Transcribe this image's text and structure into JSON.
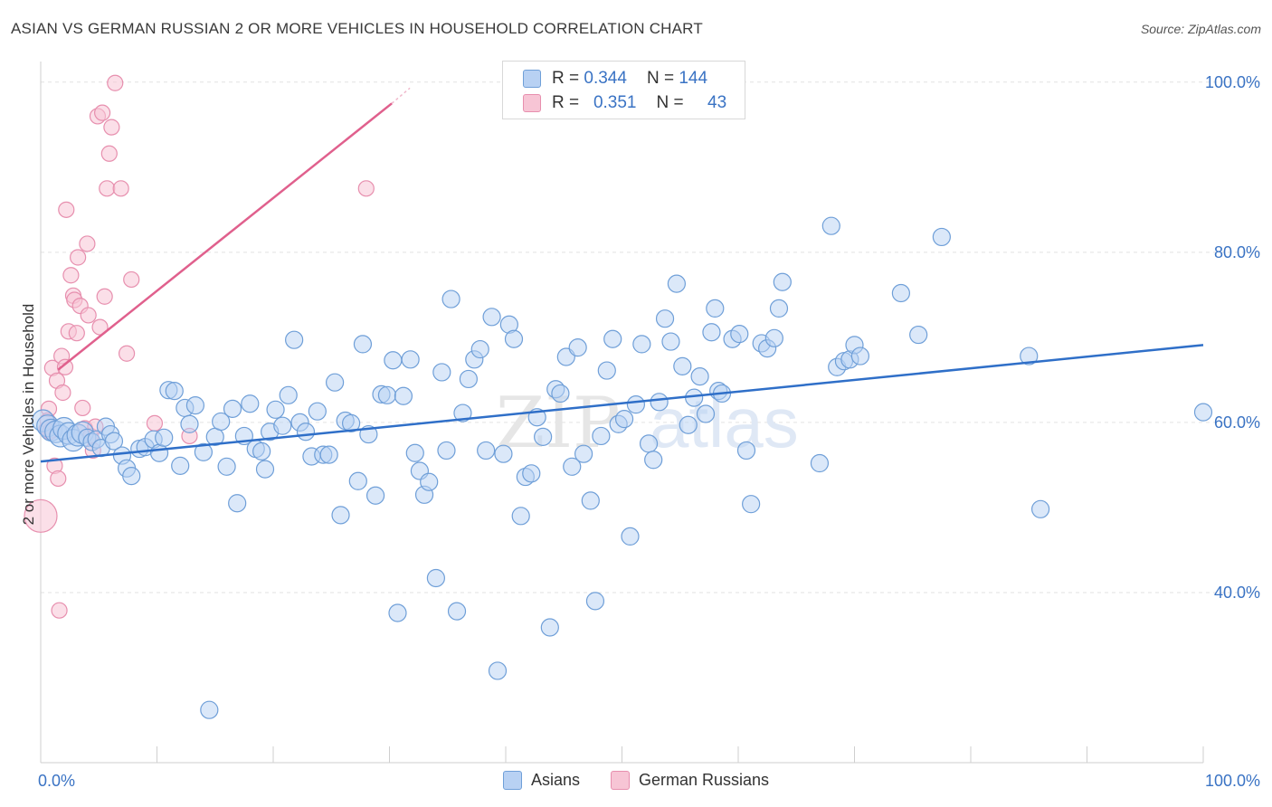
{
  "header": {
    "title": "ASIAN VS GERMAN RUSSIAN 2 OR MORE VEHICLES IN HOUSEHOLD CORRELATION CHART",
    "source": "Source: ZipAtlas.com"
  },
  "watermark": {
    "part1": "ZIP",
    "part2": "atlas"
  },
  "legend": {
    "rows": [
      {
        "r_label": "R =",
        "r_value": "0.344",
        "n_label": "N =",
        "n_value": "144"
      },
      {
        "r_label": "R =",
        "r_value": "0.351",
        "n_label": "N =",
        "n_value": "43"
      }
    ]
  },
  "colors": {
    "asian_fill": "#b8d1f3",
    "asian_stroke": "#6f9fd8",
    "asian_line": "#2f6fc8",
    "german_fill": "#f7c5d5",
    "german_stroke": "#e78fae",
    "german_line": "#e0608d",
    "axis_label": "#3a73c4",
    "grid": "#e2e2e2"
  },
  "chart_data": {
    "type": "scatter",
    "xlabel": "",
    "ylabel": "2 or more Vehicles in Household",
    "xlim": [
      0,
      100
    ],
    "ylim": [
      20,
      102
    ],
    "x_tick_labels": [
      {
        "value": 0,
        "label": "0.0%"
      },
      {
        "value": 100,
        "label": "100.0%"
      }
    ],
    "y_tick_labels": [
      {
        "value": 40,
        "label": "40.0%"
      },
      {
        "value": 60,
        "label": "60.0%"
      },
      {
        "value": 80,
        "label": "80.0%"
      },
      {
        "value": 100,
        "label": "100.0%"
      }
    ],
    "grid": "horizontal dashed",
    "legend_position": "top-center",
    "series": [
      {
        "name": "Asians",
        "trend": {
          "x": [
            0,
            100
          ],
          "y": [
            55.4,
            69.1
          ]
        },
        "points": [
          [
            0.2,
            60.2
          ],
          [
            0.6,
            59.6
          ],
          [
            0.9,
            59.1
          ],
          [
            1.3,
            58.9
          ],
          [
            1.7,
            58.4
          ],
          [
            2.0,
            59.3
          ],
          [
            2.4,
            58.7
          ],
          [
            2.8,
            57.9
          ],
          [
            3.2,
            58.5
          ],
          [
            3.6,
            58.8
          ],
          [
            4.0,
            58.2
          ],
          [
            4.4,
            57.7
          ],
          [
            4.8,
            58.0
          ],
          [
            5.2,
            57.0
          ],
          [
            5.6,
            59.5
          ],
          [
            6.0,
            58.6
          ],
          [
            6.3,
            57.8
          ],
          [
            7.0,
            56.1
          ],
          [
            7.4,
            54.6
          ],
          [
            7.8,
            53.7
          ],
          [
            8.5,
            56.9
          ],
          [
            9.0,
            57.1
          ],
          [
            9.7,
            58.0
          ],
          [
            10.2,
            56.4
          ],
          [
            10.6,
            58.2
          ],
          [
            11.0,
            63.8
          ],
          [
            11.5,
            63.7
          ],
          [
            12.0,
            54.9
          ],
          [
            12.4,
            61.7
          ],
          [
            12.8,
            59.8
          ],
          [
            13.3,
            62.0
          ],
          [
            14.0,
            56.5
          ],
          [
            14.5,
            26.2
          ],
          [
            15.0,
            58.3
          ],
          [
            15.5,
            60.1
          ],
          [
            16.0,
            54.8
          ],
          [
            16.5,
            61.6
          ],
          [
            16.9,
            50.5
          ],
          [
            17.5,
            58.4
          ],
          [
            18.0,
            62.2
          ],
          [
            18.5,
            56.9
          ],
          [
            19.0,
            56.6
          ],
          [
            19.3,
            54.5
          ],
          [
            19.7,
            58.9
          ],
          [
            20.2,
            61.5
          ],
          [
            20.8,
            59.6
          ],
          [
            21.3,
            63.2
          ],
          [
            21.8,
            69.7
          ],
          [
            22.3,
            60.0
          ],
          [
            22.8,
            58.9
          ],
          [
            23.3,
            56.0
          ],
          [
            23.8,
            61.3
          ],
          [
            24.3,
            56.2
          ],
          [
            24.8,
            56.2
          ],
          [
            25.3,
            64.7
          ],
          [
            25.8,
            49.1
          ],
          [
            26.2,
            60.2
          ],
          [
            26.7,
            59.9
          ],
          [
            27.3,
            53.1
          ],
          [
            27.7,
            69.2
          ],
          [
            28.2,
            58.6
          ],
          [
            28.8,
            51.4
          ],
          [
            29.3,
            63.3
          ],
          [
            29.8,
            63.2
          ],
          [
            30.3,
            67.3
          ],
          [
            30.7,
            37.6
          ],
          [
            31.2,
            63.1
          ],
          [
            31.8,
            67.4
          ],
          [
            32.2,
            56.4
          ],
          [
            32.6,
            54.3
          ],
          [
            33.0,
            51.5
          ],
          [
            33.4,
            53.0
          ],
          [
            34.0,
            41.7
          ],
          [
            34.5,
            65.9
          ],
          [
            34.9,
            56.7
          ],
          [
            35.3,
            74.5
          ],
          [
            35.8,
            37.8
          ],
          [
            36.3,
            61.1
          ],
          [
            36.8,
            65.1
          ],
          [
            37.3,
            67.4
          ],
          [
            37.8,
            68.6
          ],
          [
            38.3,
            56.7
          ],
          [
            38.8,
            72.4
          ],
          [
            39.3,
            30.8
          ],
          [
            39.8,
            56.3
          ],
          [
            40.3,
            71.5
          ],
          [
            40.7,
            69.8
          ],
          [
            41.3,
            49.0
          ],
          [
            41.7,
            53.6
          ],
          [
            42.2,
            54.0
          ],
          [
            42.7,
            60.6
          ],
          [
            43.2,
            58.3
          ],
          [
            43.8,
            35.9
          ],
          [
            44.3,
            63.9
          ],
          [
            44.7,
            63.4
          ],
          [
            45.2,
            67.7
          ],
          [
            45.7,
            54.8
          ],
          [
            46.2,
            68.8
          ],
          [
            46.7,
            56.3
          ],
          [
            47.3,
            50.8
          ],
          [
            47.7,
            39.0
          ],
          [
            48.2,
            58.4
          ],
          [
            48.7,
            66.1
          ],
          [
            49.2,
            69.8
          ],
          [
            49.7,
            59.8
          ],
          [
            50.2,
            60.4
          ],
          [
            50.7,
            46.6
          ],
          [
            51.2,
            62.1
          ],
          [
            51.7,
            69.2
          ],
          [
            52.3,
            57.5
          ],
          [
            52.7,
            55.6
          ],
          [
            53.2,
            62.4
          ],
          [
            53.7,
            72.2
          ],
          [
            54.2,
            69.5
          ],
          [
            54.7,
            76.3
          ],
          [
            55.2,
            66.6
          ],
          [
            55.7,
            59.7
          ],
          [
            56.2,
            62.9
          ],
          [
            56.7,
            65.4
          ],
          [
            57.2,
            61.0
          ],
          [
            57.7,
            70.6
          ],
          [
            58.0,
            73.4
          ],
          [
            58.3,
            63.7
          ],
          [
            58.6,
            63.4
          ],
          [
            59.5,
            69.8
          ],
          [
            60.1,
            70.4
          ],
          [
            60.7,
            56.7
          ],
          [
            61.1,
            50.4
          ],
          [
            62.0,
            69.3
          ],
          [
            62.5,
            68.7
          ],
          [
            63.1,
            69.9
          ],
          [
            63.5,
            73.4
          ],
          [
            63.8,
            76.5
          ],
          [
            67.0,
            55.2
          ],
          [
            68.0,
            83.1
          ],
          [
            68.5,
            66.5
          ],
          [
            69.1,
            67.2
          ],
          [
            69.6,
            67.4
          ],
          [
            70.0,
            69.1
          ],
          [
            70.5,
            67.8
          ],
          [
            74.0,
            75.2
          ],
          [
            75.5,
            70.3
          ],
          [
            77.5,
            81.8
          ],
          [
            85.0,
            67.8
          ],
          [
            86.0,
            49.8
          ],
          [
            100.0,
            61.2
          ]
        ]
      },
      {
        "name": "German Russians",
        "trend": {
          "x": [
            1.5,
            30.2
          ],
          "y": [
            66.2,
            97.5
          ]
        },
        "points": [
          [
            0.0,
            49.0
          ],
          [
            0.5,
            59.2
          ],
          [
            0.7,
            61.6
          ],
          [
            1.0,
            66.4
          ],
          [
            1.2,
            54.9
          ],
          [
            1.4,
            64.9
          ],
          [
            1.5,
            53.4
          ],
          [
            1.6,
            37.9
          ],
          [
            1.8,
            67.8
          ],
          [
            1.9,
            63.5
          ],
          [
            2.1,
            66.5
          ],
          [
            2.2,
            85.0
          ],
          [
            2.4,
            70.7
          ],
          [
            2.6,
            77.3
          ],
          [
            2.8,
            74.9
          ],
          [
            2.9,
            74.4
          ],
          [
            3.1,
            70.5
          ],
          [
            3.2,
            79.4
          ],
          [
            3.4,
            73.7
          ],
          [
            3.6,
            61.7
          ],
          [
            3.8,
            59.3
          ],
          [
            4.0,
            81.0
          ],
          [
            4.1,
            72.6
          ],
          [
            4.3,
            58.4
          ],
          [
            4.5,
            56.7
          ],
          [
            4.7,
            59.5
          ],
          [
            4.9,
            96.0
          ],
          [
            5.1,
            71.2
          ],
          [
            5.3,
            96.4
          ],
          [
            5.5,
            74.8
          ],
          [
            5.7,
            87.5
          ],
          [
            5.9,
            91.6
          ],
          [
            6.1,
            94.7
          ],
          [
            6.4,
            99.9
          ],
          [
            6.9,
            87.5
          ],
          [
            7.4,
            68.1
          ],
          [
            7.8,
            76.8
          ],
          [
            9.8,
            59.9
          ],
          [
            12.8,
            58.4
          ],
          [
            28.0,
            87.5
          ],
          [
            0.9,
            59.1
          ],
          [
            0.6,
            60.2
          ],
          [
            0.8,
            58.9
          ]
        ]
      }
    ]
  },
  "bottom_legend": [
    {
      "label": "Asians"
    },
    {
      "label": "German Russians"
    }
  ]
}
